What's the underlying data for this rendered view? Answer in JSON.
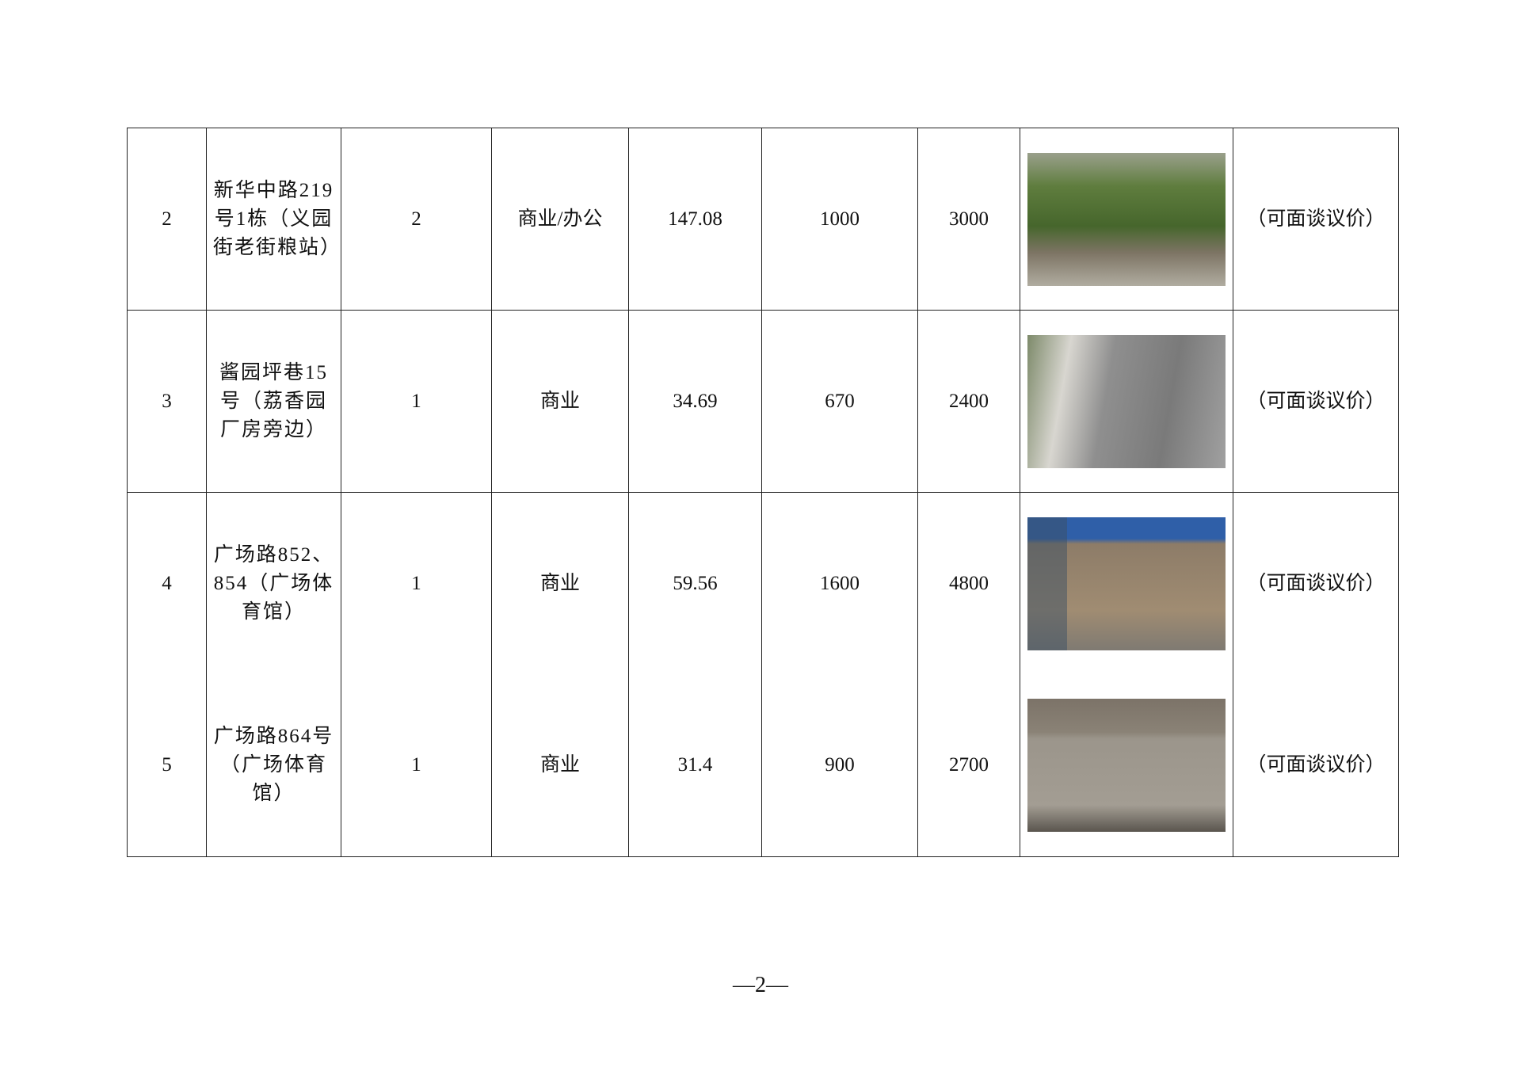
{
  "rows": [
    {
      "no": "2",
      "address": "新华中路219号1栋（义园街老街粮站）",
      "count": "2",
      "use": "商业/办公",
      "area": "147.08",
      "price1": "1000",
      "price2": "3000",
      "photo": "storefront-trees-photo",
      "note": "（可面谈议价）"
    },
    {
      "no": "3",
      "address": "酱园坪巷15号（荔香园厂房旁边）",
      "count": "1",
      "use": "商业",
      "area": "34.69",
      "price1": "670",
      "price2": "2400",
      "photo": "street-shutters-photo",
      "note": "（可面谈议价）"
    },
    {
      "no": "4",
      "address": "广场路852、854（广场体育馆）",
      "count": "1",
      "use": "商业",
      "area": "59.56",
      "price1": "1600",
      "price2": "4800",
      "photo": "shop-shutter-blue-sign-photo",
      "note": "（可面谈议价）"
    },
    {
      "no": "5",
      "address": "广场路864号（广场体育馆）",
      "count": "1",
      "use": "商业",
      "area": "31.4",
      "price1": "900",
      "price2": "2700",
      "photo": "shop-glass-door-photo",
      "note": "（可面谈议价）"
    }
  ],
  "page_number": "—2—"
}
